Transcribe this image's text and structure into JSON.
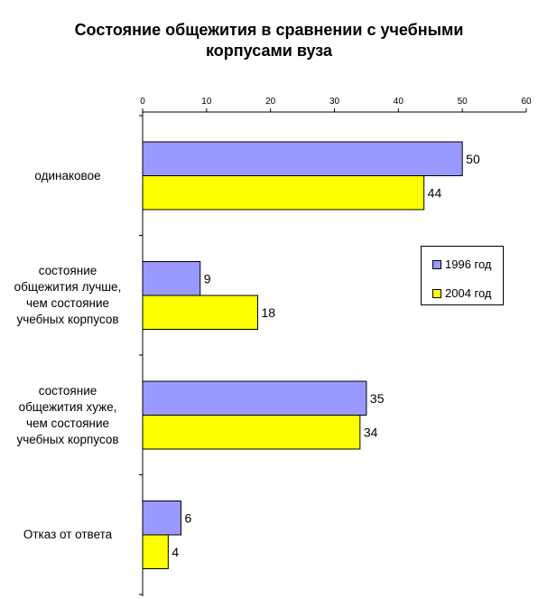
{
  "chart_data": {
    "type": "bar",
    "orientation": "horizontal",
    "title": "Состояние общежития в сравнении с учебными корпусами вуза",
    "title_lines": [
      "Состояние общежития в сравнении с учебными",
      "корпусами вуза"
    ],
    "categories": [
      "одинаковое",
      "состояние общежития лучше, чем состояние учебных корпусов",
      "состояние общежития хуже, чем состояние учебных корпусов",
      "Отказ от ответа"
    ],
    "category_lines": [
      [
        "одинаковое"
      ],
      [
        "состояние",
        "общежития лучше,",
        "чем состояние",
        "учебных корпусов"
      ],
      [
        "состояние",
        "общежития хуже,",
        "чем состояние",
        "учебных корпусов"
      ],
      [
        "Отказ от ответа"
      ]
    ],
    "series": [
      {
        "name": "1996 год",
        "values": [
          50,
          9,
          35,
          6
        ],
        "color": "#9999FF"
      },
      {
        "name": "2004 год",
        "values": [
          44,
          18,
          34,
          4
        ],
        "color": "#FFFF00"
      }
    ],
    "xlim": [
      0,
      60
    ],
    "x_ticks": [
      "0",
      "10",
      "20",
      "30",
      "40",
      "50",
      "60"
    ],
    "axis_position": "top",
    "grid": false,
    "legend_position": "right"
  }
}
